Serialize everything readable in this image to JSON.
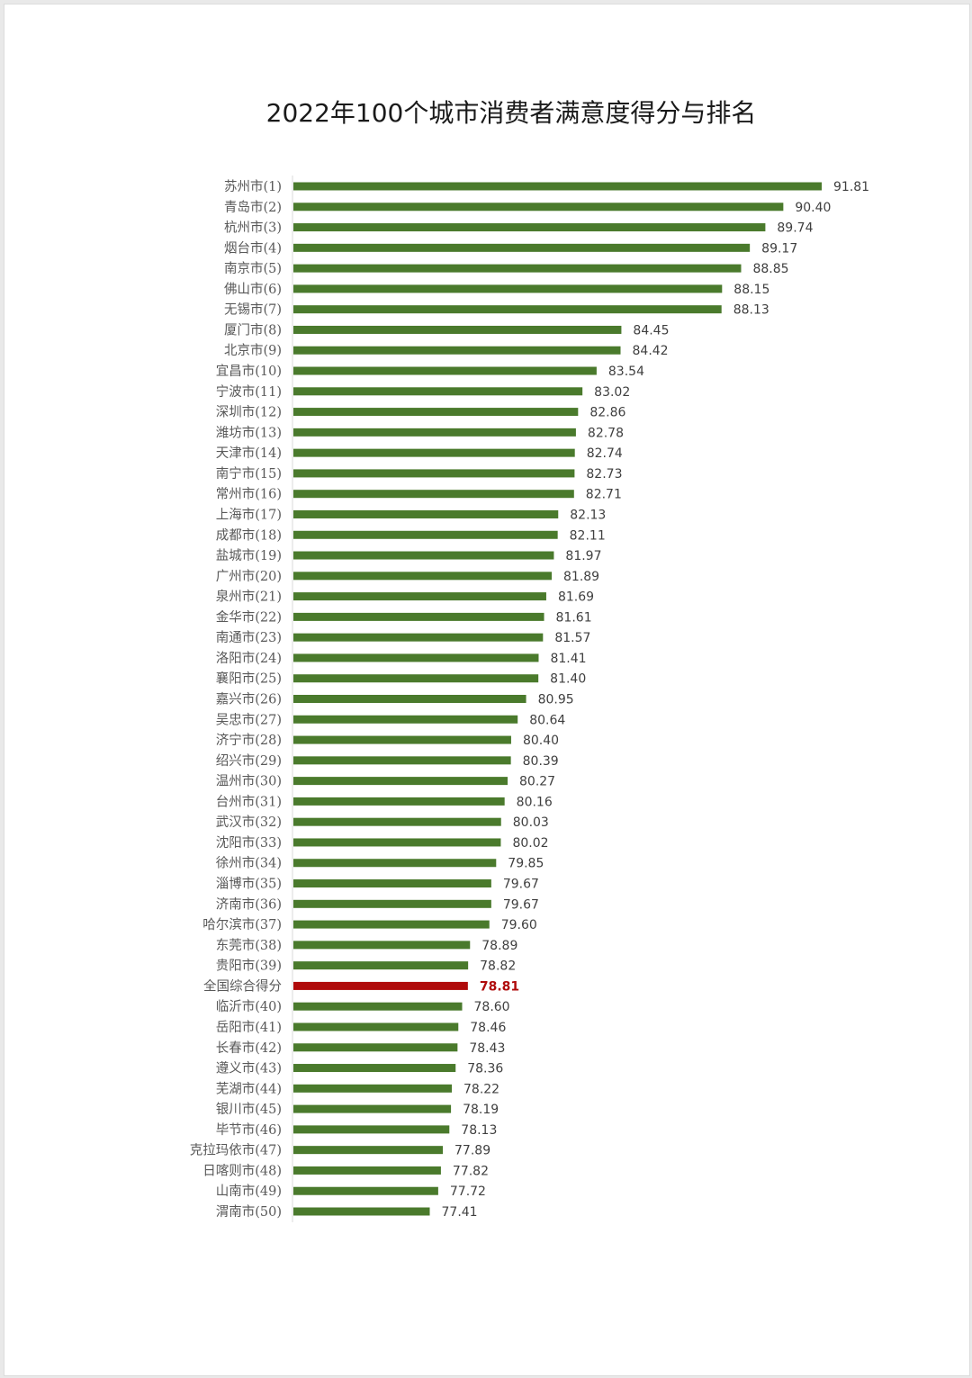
{
  "chart_data": {
    "type": "bar",
    "orientation": "horizontal",
    "title": "2022年100个城市消费者满意度得分与排名",
    "xlabel": "",
    "ylabel": "",
    "xlim": [
      72.4,
      91.81
    ],
    "grid": false,
    "legend": "none",
    "colors": {
      "bar": "#4a7a2c",
      "highlight": "#b00b0b"
    },
    "categories": [
      "苏州市(1)",
      "青岛市(2)",
      "杭州市(3)",
      "烟台市(4)",
      "南京市(5)",
      "佛山市(6)",
      "无锡市(7)",
      "厦门市(8)",
      "北京市(9)",
      "宜昌市(10)",
      "宁波市(11)",
      "深圳市(12)",
      "潍坊市(13)",
      "天津市(14)",
      "南宁市(15)",
      "常州市(16)",
      "上海市(17)",
      "成都市(18)",
      "盐城市(19)",
      "广州市(20)",
      "泉州市(21)",
      "金华市(22)",
      "南通市(23)",
      "洛阳市(24)",
      "襄阳市(25)",
      "嘉兴市(26)",
      "吴忠市(27)",
      "济宁市(28)",
      "绍兴市(29)",
      "温州市(30)",
      "台州市(31)",
      "武汉市(32)",
      "沈阳市(33)",
      "徐州市(34)",
      "淄博市(35)",
      "济南市(36)",
      "哈尔滨市(37)",
      "东莞市(38)",
      "贵阳市(39)",
      "全国综合得分",
      "临沂市(40)",
      "岳阳市(41)",
      "长春市(42)",
      "遵义市(43)",
      "芜湖市(44)",
      "银川市(45)",
      "毕节市(46)",
      "克拉玛依市(47)",
      "日喀则市(48)",
      "山南市(49)",
      "渭南市(50)"
    ],
    "values": [
      91.81,
      90.4,
      89.74,
      89.17,
      88.85,
      88.15,
      88.13,
      84.45,
      84.42,
      83.54,
      83.02,
      82.86,
      82.78,
      82.74,
      82.73,
      82.71,
      82.13,
      82.11,
      81.97,
      81.89,
      81.69,
      81.61,
      81.57,
      81.41,
      81.4,
      80.95,
      80.64,
      80.4,
      80.39,
      80.27,
      80.16,
      80.03,
      80.02,
      79.85,
      79.67,
      79.67,
      79.6,
      78.89,
      78.82,
      78.81,
      78.6,
      78.46,
      78.43,
      78.36,
      78.22,
      78.19,
      78.13,
      77.89,
      77.82,
      77.72,
      77.41
    ],
    "value_labels": [
      "91.81",
      "90.40",
      "89.74",
      "89.17",
      "88.85",
      "88.15",
      "88.13",
      "84.45",
      "84.42",
      "83.54",
      "83.02",
      "82.86",
      "82.78",
      "82.74",
      "82.73",
      "82.71",
      "82.13",
      "82.11",
      "81.97",
      "81.89",
      "81.69",
      "81.61",
      "81.57",
      "81.41",
      "81.40",
      "80.95",
      "80.64",
      "80.40",
      "80.39",
      "80.27",
      "80.16",
      "80.03",
      "80.02",
      "79.85",
      "79.67",
      "79.67",
      "79.60",
      "78.89",
      "78.82",
      "78.81",
      "78.60",
      "78.46",
      "78.43",
      "78.36",
      "78.22",
      "78.19",
      "78.13",
      "77.89",
      "77.82",
      "77.72",
      "77.41"
    ],
    "highlight_category": "全国综合得分"
  }
}
